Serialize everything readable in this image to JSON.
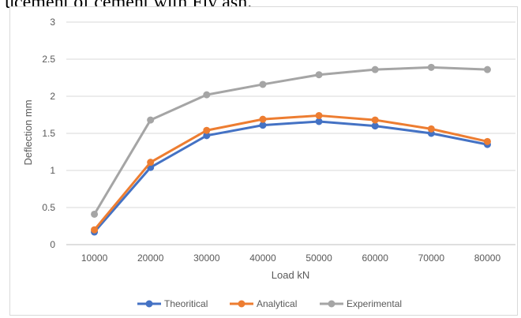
{
  "header": {
    "text": "ucement of cement with Fly ash."
  },
  "chart_data": {
    "type": "line",
    "title": "",
    "xlabel": "Load kN",
    "ylabel": "Deflection mm",
    "x": [
      "10000",
      "20000",
      "30000",
      "40000",
      "50000",
      "60000",
      "70000",
      "80000"
    ],
    "ylim": [
      0,
      3
    ],
    "yticks": [
      "0",
      "0.5",
      "1",
      "1.5",
      "2",
      "2.5",
      "3"
    ],
    "grid": true,
    "legend_position": "bottom",
    "series": [
      {
        "name": "Theoritical",
        "color": "#4472c4",
        "values": [
          0.17,
          1.04,
          1.47,
          1.61,
          1.66,
          1.6,
          1.5,
          1.35
        ]
      },
      {
        "name": "Analytical",
        "color": "#ed7d31",
        "values": [
          0.2,
          1.11,
          1.54,
          1.69,
          1.74,
          1.68,
          1.56,
          1.39
        ]
      },
      {
        "name": "Experimental",
        "color": "#a5a5a5",
        "values": [
          0.41,
          1.68,
          2.02,
          2.16,
          2.29,
          2.36,
          2.39,
          2.36
        ]
      }
    ]
  }
}
